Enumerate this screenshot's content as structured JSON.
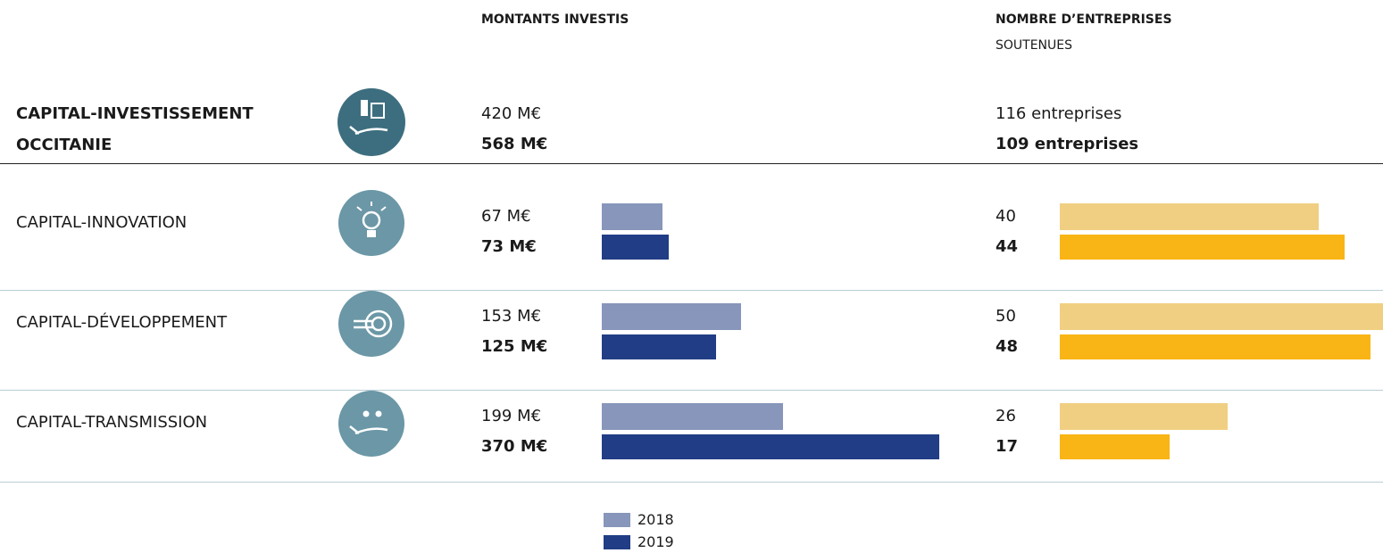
{
  "headers": {
    "amounts": "MONTANTS INVESTIS",
    "companies_line1": "NOMBRE D’ENTREPRISES",
    "companies_line2": "SOUTENUES"
  },
  "total": {
    "label_line1": "CAPITAL-INVESTISSEMENT",
    "label_line2": "OCCITANIE",
    "amounts": [
      "420 M€",
      "568 M€"
    ],
    "companies": [
      "116 entreprises",
      "109 entreprises"
    ]
  },
  "rows": [
    {
      "label": "CAPITAL-INNOVATION",
      "amounts": [
        67,
        73
      ],
      "amount_labels": [
        "67 M€",
        "73 M€"
      ],
      "companies": [
        40,
        44
      ]
    },
    {
      "label": "CAPITAL-DÉVELOPPEMENT",
      "amounts": [
        153,
        125
      ],
      "amount_labels": [
        "153 M€",
        "125 M€"
      ],
      "companies": [
        50,
        48
      ]
    },
    {
      "label": "CAPITAL-TRANSMISSION",
      "amounts": [
        199,
        370
      ],
      "amount_labels": [
        "199 M€",
        "370 M€"
      ],
      "companies": [
        26,
        17
      ]
    }
  ],
  "legend": [
    "2018",
    "2019"
  ],
  "amount_colors": [
    "#8796ba",
    "#213d85"
  ],
  "company_colors": [
    "#f0cf82",
    "#f9b515"
  ]
}
